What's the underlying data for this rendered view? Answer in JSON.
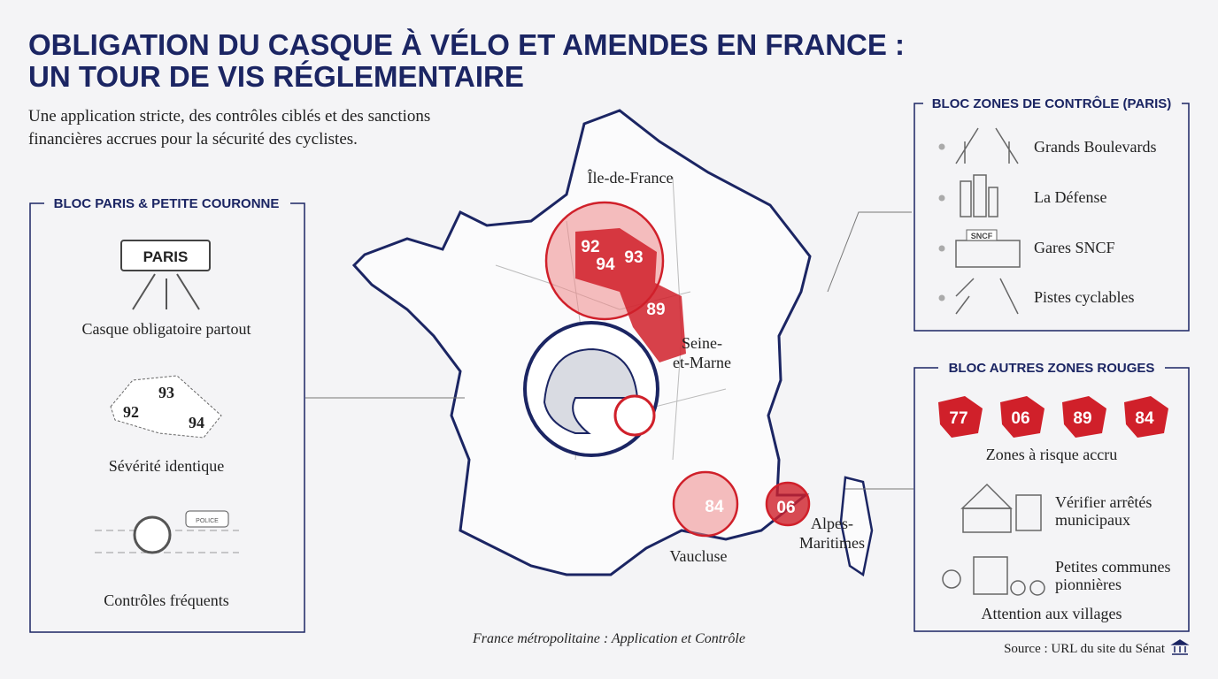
{
  "header": {
    "title": [
      "OBLIGATION DU CASQUE À VÉLO ET AMENDES EN FRANCE :",
      "UN TOUR DE VIS RÉGLEMENTAIRE"
    ],
    "subtitle": [
      "Une application stricte, des contrôles ciblés et des sanctions",
      "financières accrues pour la sécurité des cyclistes."
    ]
  },
  "left_panel": {
    "title": "BLOC PARIS & PETITE COURONNE",
    "sign": "PARIS",
    "items": [
      {
        "label": "Casque obligatoire partout"
      },
      {
        "label": "Sévérité identique",
        "departments": [
          "93",
          "92",
          "94"
        ]
      },
      {
        "label": "Contrôles fréquents",
        "car_label": "POLICE"
      }
    ]
  },
  "map": {
    "regions": [
      "Île-de-France",
      [
        "Seine-",
        "et-Marne"
      ],
      "Vaucluse",
      [
        "Alpes-",
        "Maritimes"
      ]
    ],
    "markers": [
      "92",
      "94",
      "93",
      "89",
      "84",
      "06"
    ],
    "caption": "France métropolitaine : Application et Contrôle"
  },
  "right_top": {
    "title": "BLOC ZONES DE CONTRÔLE (PARIS)",
    "icon_label": "SNCF",
    "items": [
      "Grands Boulevards",
      "La Défense",
      "Gares SNCF",
      "Pistes cyclables"
    ]
  },
  "right_bottom": {
    "title": "BLOC AUTRES ZONES ROUGES",
    "badges": [
      "77",
      "06",
      "89",
      "84"
    ],
    "badges_label": "Zones à risque accru",
    "items": [
      [
        "Vérifier arrêtés",
        "municipaux"
      ],
      [
        "Petites communes",
        "pionnières"
      ]
    ],
    "footer": "Attention aux villages"
  },
  "source": "Source : URL du site du Sénat"
}
